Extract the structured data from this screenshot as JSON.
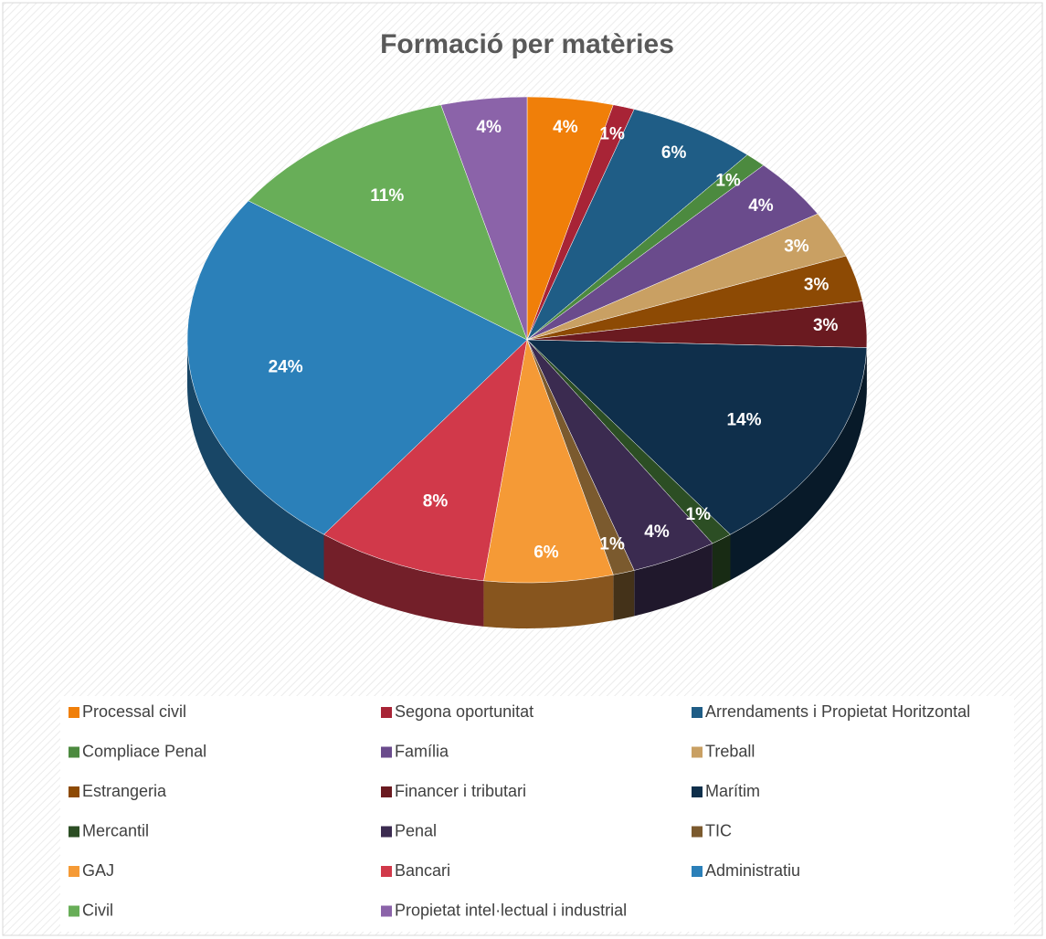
{
  "chart_data": {
    "type": "pie",
    "title": "Formació per matèries",
    "categories": [
      "Processal civil",
      "Segona oportunitat",
      "Arrendaments i Propietat Horitzontal",
      "Compliace Penal",
      "Família",
      "Treball",
      "Estrangeria",
      "Financer i tributari",
      "Marítim",
      "Mercantil",
      "Penal",
      "TIC",
      "GAJ",
      "Bancari",
      "Administratiu",
      "Civil",
      "Propietat intel·lectual i industrial"
    ],
    "values": [
      4,
      1,
      6,
      1,
      4,
      3,
      3,
      3,
      14,
      1,
      4,
      1,
      6,
      8,
      24,
      11,
      4
    ],
    "value_labels": [
      "4%",
      "1%",
      "6%",
      "1%",
      "4%",
      "3%",
      "3%",
      "3%",
      "14%",
      "1%",
      "4%",
      "1%",
      "6%",
      "8%",
      "24%",
      "11%",
      "4%"
    ],
    "colors": [
      "#f07f09",
      "#a82436",
      "#1f5d86",
      "#4c8a3f",
      "#6a4b8c",
      "#c9a063",
      "#8d4a04",
      "#6a1a20",
      "#0f2f4b",
      "#2c4e24",
      "#3b2b50",
      "#7b5a2e",
      "#f59a36",
      "#d1394a",
      "#2b80b9",
      "#68ae58",
      "#8b63a9"
    ],
    "legend": "bottom"
  }
}
